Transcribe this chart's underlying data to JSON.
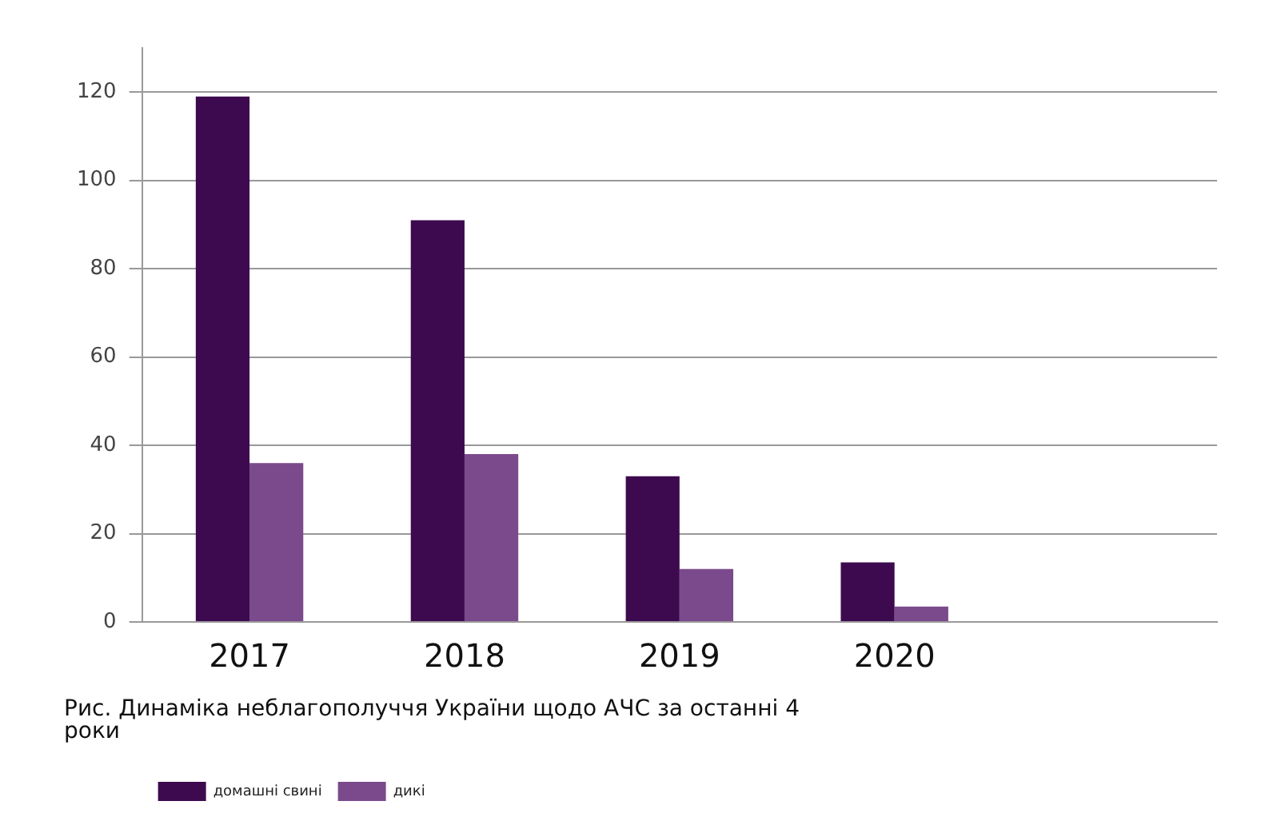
{
  "chart_data": {
    "type": "bar",
    "title": "Рис. Динаміка неблагополуччя України щодо АЧС за останні 4 роки",
    "categories": [
      "2017",
      "2018",
      "2019",
      "2020",
      null
    ],
    "series": [
      {
        "name": "домашні свині",
        "color": "#3d0a4f",
        "values": [
          119,
          91,
          33,
          13.5,
          null
        ]
      },
      {
        "name": "дикі",
        "color": "#7b4a8c",
        "values": [
          36,
          38,
          12,
          3.5,
          null
        ]
      }
    ],
    "ylim": [
      0,
      130
    ],
    "yticks": [
      0,
      20,
      40,
      60,
      80,
      100,
      120
    ],
    "grid": "y",
    "legend": "bottom left"
  }
}
